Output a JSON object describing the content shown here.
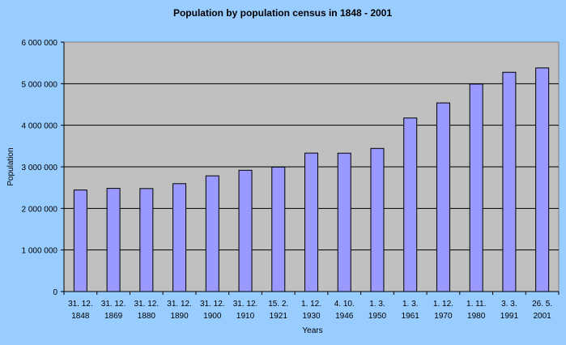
{
  "chart_data": {
    "type": "bar",
    "title": "Population by population census in 1848 - 2001",
    "xlabel": "Years",
    "ylabel": "Population",
    "ylim": [
      0,
      6000000
    ],
    "yticks": [
      0,
      1000000,
      2000000,
      3000000,
      4000000,
      5000000,
      6000000
    ],
    "ytick_labels": [
      "0",
      "1 000 000",
      "2 000 000",
      "3 000 000",
      "4 000 000",
      "5 000 000",
      "6 000 000"
    ],
    "grid": true,
    "categories": [
      [
        "31. 12.",
        "1848"
      ],
      [
        "31. 12.",
        "1869"
      ],
      [
        "31. 12.",
        "1880"
      ],
      [
        "31. 12.",
        "1890"
      ],
      [
        "31. 12.",
        "1900"
      ],
      [
        "31. 12.",
        "1910"
      ],
      [
        "15.  2.",
        "1921"
      ],
      [
        "1. 12.",
        "1930"
      ],
      [
        "4. 10.",
        "1946"
      ],
      [
        "1.  3.",
        "1950"
      ],
      [
        "1.  3.",
        "1961"
      ],
      [
        "1. 12.",
        "1970"
      ],
      [
        "1. 11.",
        "1980"
      ],
      [
        "3.  3.",
        "1991"
      ],
      [
        "26.  5.",
        "2001"
      ]
    ],
    "values": [
      2442000,
      2481811,
      2477521,
      2595180,
      2782925,
      2916657,
      2993859,
      3329793,
      3327803,
      3442317,
      4174046,
      4537290,
      4991168,
      5274335,
      5379455
    ],
    "colors": {
      "background": "#99ccff",
      "plot_area": "#c0c0c0",
      "bar": "#9999ff",
      "gridline": "#000000"
    }
  }
}
